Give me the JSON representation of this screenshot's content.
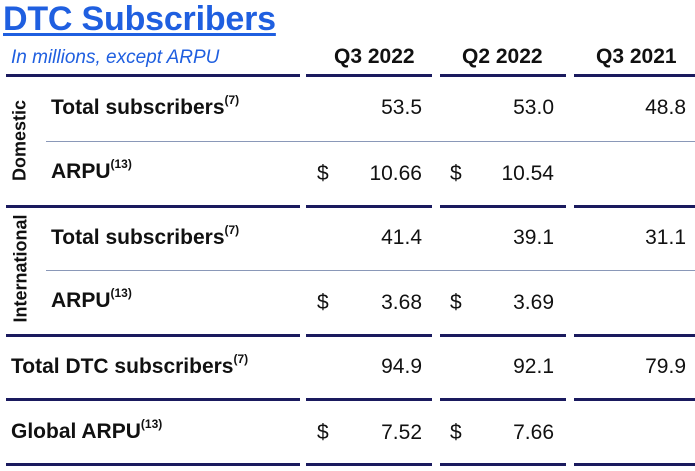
{
  "title": "DTC Subscribers",
  "subtitle": "In millions, except ARPU",
  "columns": [
    "Q3 2022",
    "Q2 2022",
    "Q3 2021"
  ],
  "sections": {
    "domestic": "Domestic",
    "international": "International"
  },
  "rows": {
    "dom_subs": {
      "label": "Total subscribers",
      "note": "(7)",
      "values": [
        "53.5",
        "53.0",
        "48.8"
      ]
    },
    "dom_arpu": {
      "label": "ARPU",
      "note": "(13)",
      "currency": "$",
      "values": [
        "10.66",
        "10.54",
        ""
      ]
    },
    "intl_subs": {
      "label": "Total subscribers",
      "note": "(7)",
      "values": [
        "41.4",
        "39.1",
        "31.1"
      ]
    },
    "intl_arpu": {
      "label": "ARPU",
      "note": "(13)",
      "currency": "$",
      "values": [
        "3.68",
        "3.69",
        ""
      ]
    },
    "total_dtc": {
      "label": "Total DTC subscribers",
      "note": "(7)",
      "values": [
        "94.9",
        "92.1",
        "79.9"
      ]
    },
    "global_arpu": {
      "label": "Global ARPU",
      "note": "(13)",
      "currency": "$",
      "values": [
        "7.52",
        "7.66",
        ""
      ]
    }
  },
  "colors": {
    "title": "#1f5fe0",
    "rule": "#1a1a5e"
  }
}
